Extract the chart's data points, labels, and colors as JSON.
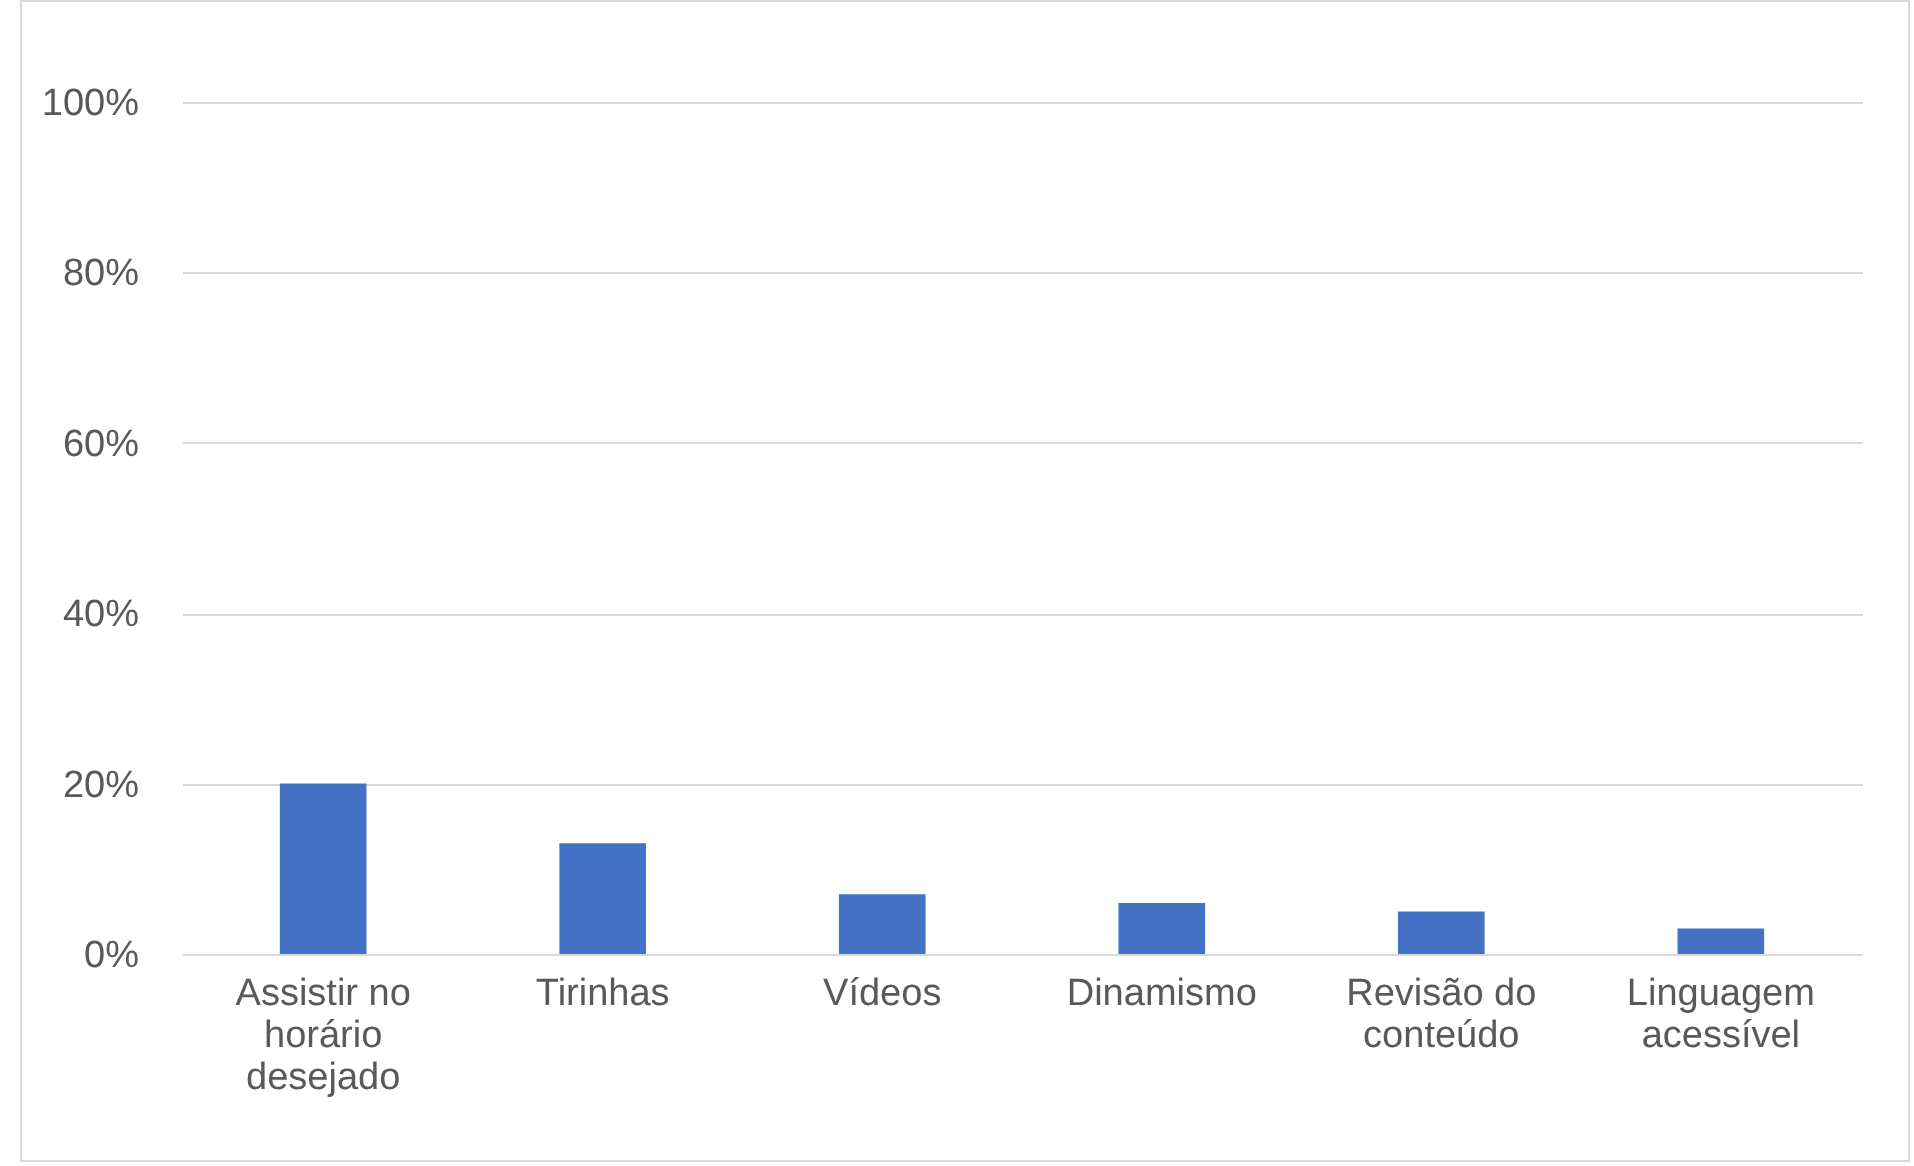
{
  "chart_data": {
    "type": "bar",
    "categories": [
      "Assistir no horário desejado",
      "Tirinhas",
      "Vídeos",
      "Dinamismo",
      "Revisão do conteúdo",
      "Linguagem acessível"
    ],
    "values": [
      20,
      13,
      7,
      6,
      5,
      3
    ],
    "color": "#4472c4",
    "ylim": [
      0,
      100
    ],
    "yticks": [
      {
        "value": 0,
        "label": "0%"
      },
      {
        "value": 20,
        "label": "20%"
      },
      {
        "value": 40,
        "label": "40%"
      },
      {
        "value": 60,
        "label": "60%"
      },
      {
        "value": 80,
        "label": "80%"
      },
      {
        "value": 100,
        "label": "100%"
      }
    ],
    "grid": "y"
  }
}
